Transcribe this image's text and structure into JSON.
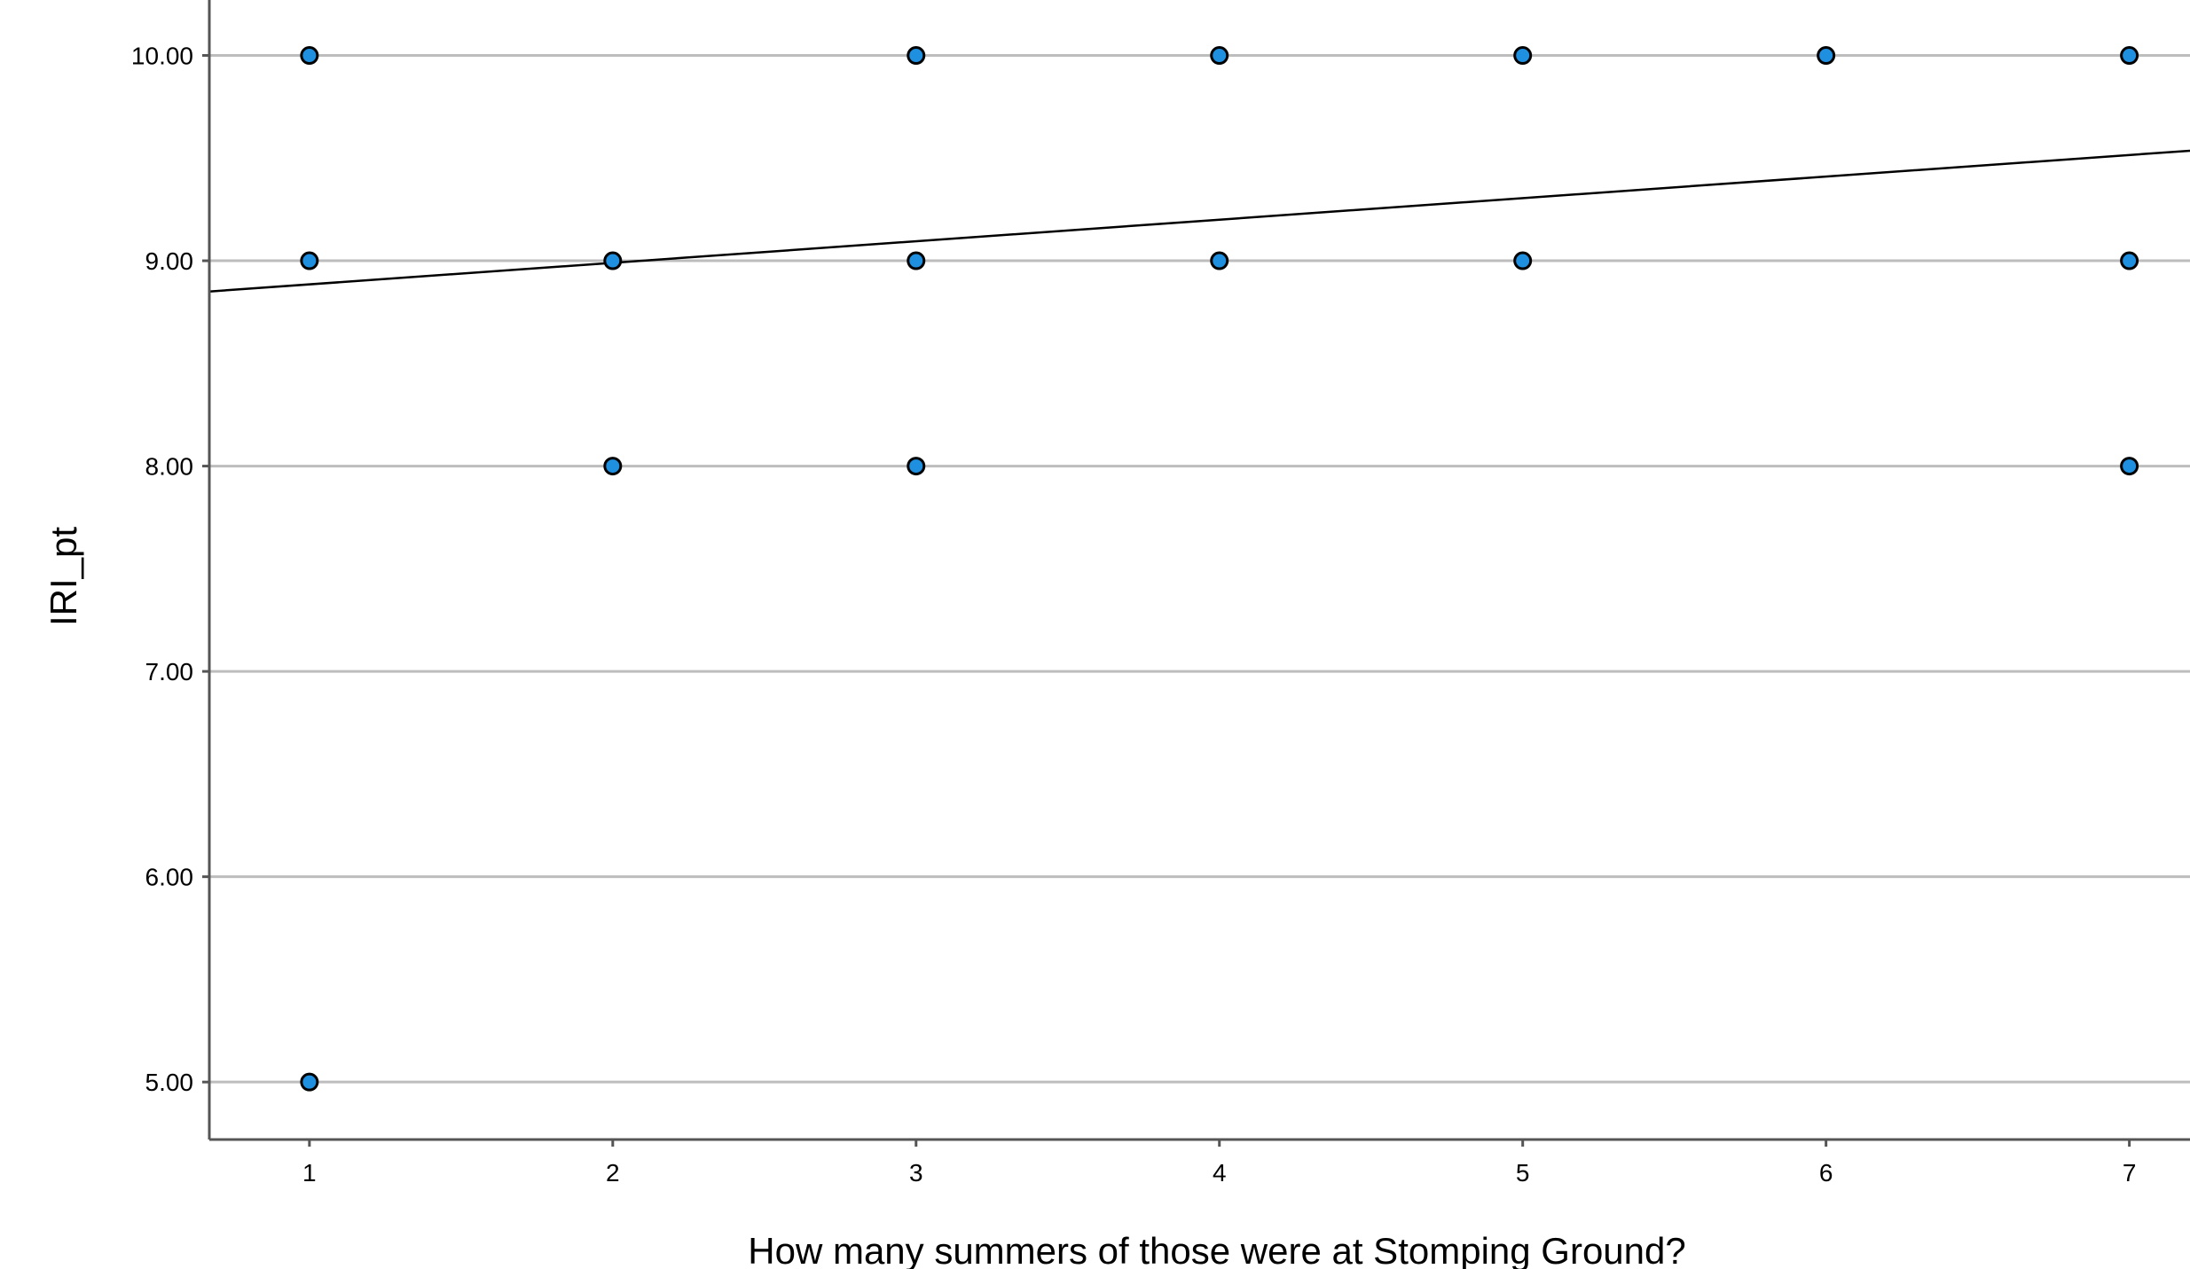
{
  "chart_data": {
    "type": "scatter",
    "xlabel": "How many summers of those were at Stomping Ground?",
    "ylabel": "IRI_pt",
    "x_ticks": [
      "1",
      "2",
      "3",
      "4",
      "5",
      "6",
      "7"
    ],
    "y_ticks": [
      "5.00",
      "6.00",
      "7.00",
      "8.00",
      "9.00",
      "10.00"
    ],
    "x_tick_values": [
      1,
      2,
      3,
      4,
      5,
      6,
      7
    ],
    "y_tick_values": [
      5,
      6,
      7,
      8,
      9,
      10
    ],
    "xlim": [
      0.67,
      7.2
    ],
    "ylim": [
      4.72,
      10.27
    ],
    "grid": "horizontal",
    "points": [
      {
        "x": 1,
        "y": 10
      },
      {
        "x": 1,
        "y": 9
      },
      {
        "x": 1,
        "y": 5
      },
      {
        "x": 2,
        "y": 9
      },
      {
        "x": 2,
        "y": 8
      },
      {
        "x": 3,
        "y": 10
      },
      {
        "x": 3,
        "y": 9
      },
      {
        "x": 3,
        "y": 8
      },
      {
        "x": 4,
        "y": 10
      },
      {
        "x": 4,
        "y": 9
      },
      {
        "x": 5,
        "y": 10
      },
      {
        "x": 5,
        "y": 9
      },
      {
        "x": 6,
        "y": 10
      },
      {
        "x": 7,
        "y": 10
      },
      {
        "x": 7,
        "y": 9
      },
      {
        "x": 7,
        "y": 8
      }
    ],
    "fit_line": {
      "intercept": 8.78,
      "slope": 0.105
    },
    "colors": {
      "point_fill": "#1F8FE0",
      "point_stroke": "#000000",
      "grid": "#BDBDBD",
      "axis": "#555555",
      "fit_line": "#000000"
    }
  }
}
